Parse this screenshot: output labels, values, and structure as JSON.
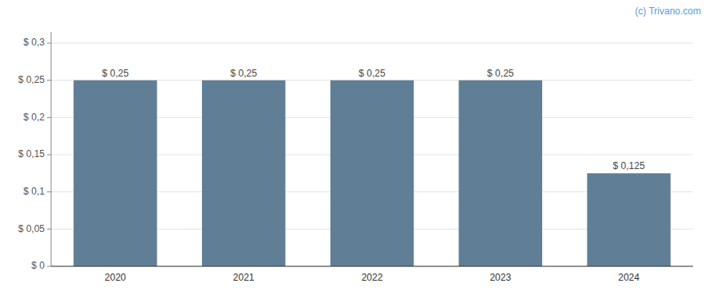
{
  "chart_data": {
    "type": "bar",
    "annotation": "(c) Trivano.com",
    "categories": [
      "2020",
      "2021",
      "2022",
      "2023",
      "2024"
    ],
    "values": [
      0.25,
      0.25,
      0.25,
      0.25,
      0.125
    ],
    "value_labels": [
      "$ 0,25",
      "$ 0,25",
      "$ 0,25",
      "$ 0,25",
      "$ 0,125"
    ],
    "color": "#607f96",
    "ylim": [
      0,
      0.315
    ],
    "yticks": [
      {
        "value": 0,
        "label": "$ 0"
      },
      {
        "value": 0.05,
        "label": "$ 0,05"
      },
      {
        "value": 0.1,
        "label": "$ 0,1"
      },
      {
        "value": 0.15,
        "label": "$ 0,15"
      },
      {
        "value": 0.2,
        "label": "$ 0,2"
      },
      {
        "value": 0.25,
        "label": "$ 0,25"
      },
      {
        "value": 0.3,
        "label": "$ 0,3"
      }
    ],
    "grid": true,
    "data_labels": true
  }
}
